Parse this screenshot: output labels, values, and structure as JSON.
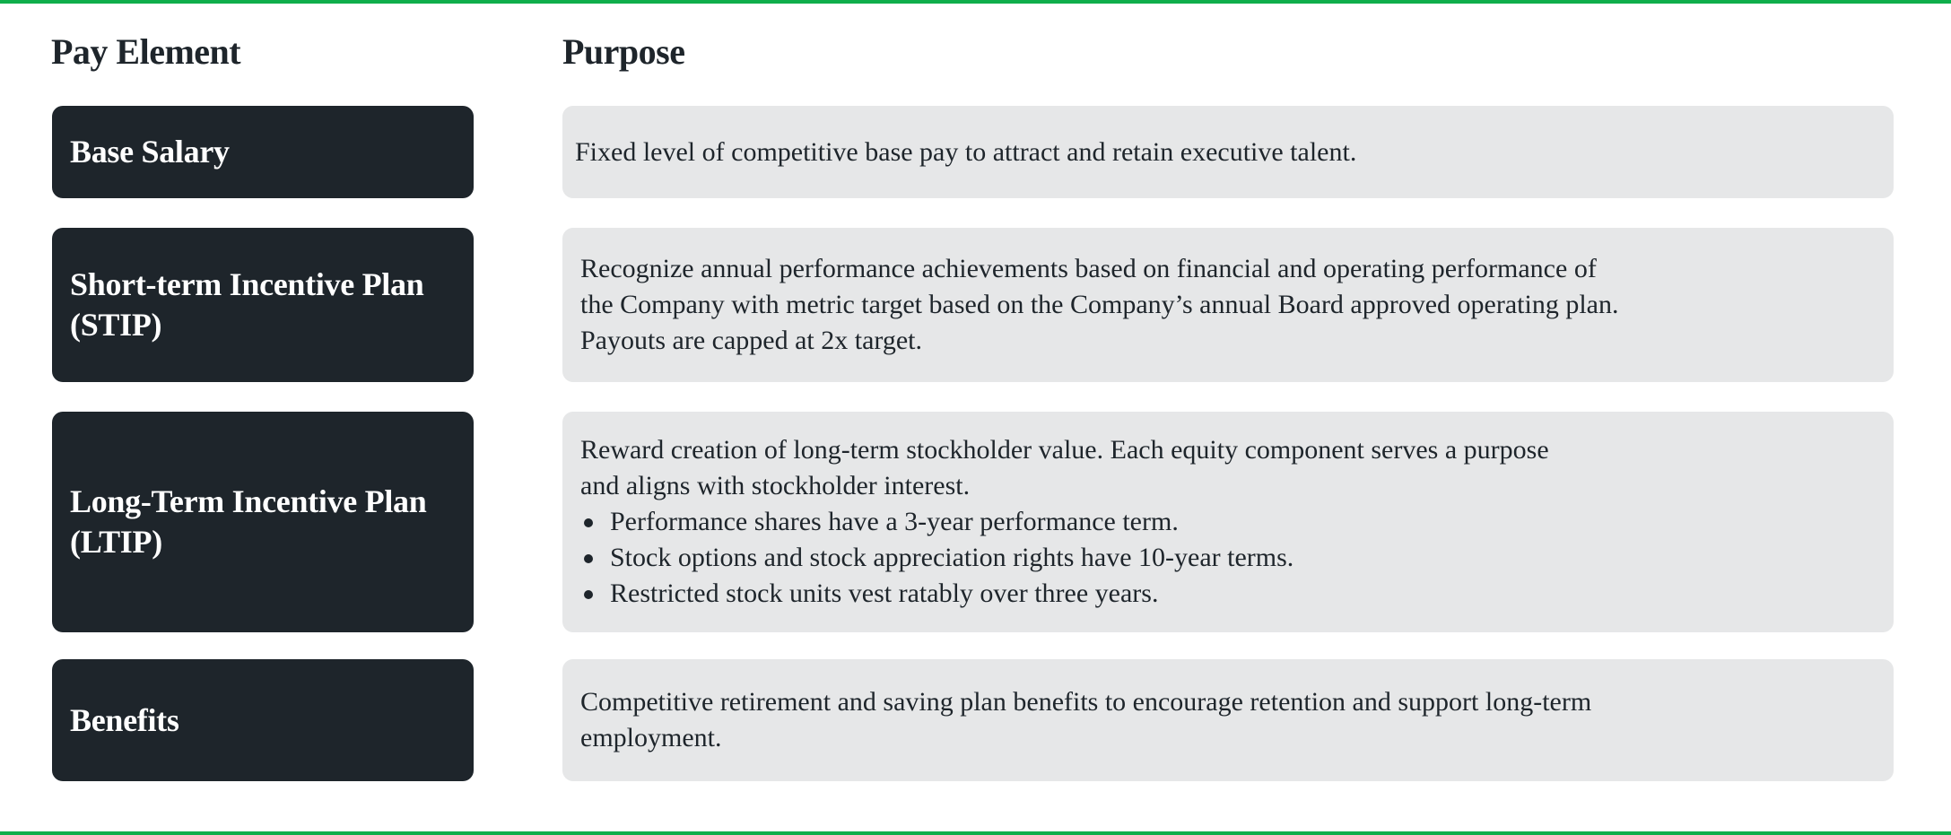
{
  "colors": {
    "accent": "#0fae4b",
    "label_bg": "#1e252b",
    "purpose_bg": "#e6e7e8"
  },
  "headers": {
    "pay_element": "Pay Element",
    "purpose": "Purpose"
  },
  "rows": [
    {
      "label_lines": [
        "Base Salary"
      ],
      "purpose_lines": [
        "Fixed level of competitive base pay to attract and retain executive talent."
      ],
      "bullets": []
    },
    {
      "label_lines": [
        "Short-term Incentive Plan",
        "(STIP)"
      ],
      "purpose_lines": [
        "Recognize annual performance achievements based on financial and operating performance of",
        "the Company with metric target based on the Company’s annual Board approved operating plan.",
        "Payouts are capped at 2x target."
      ],
      "bullets": []
    },
    {
      "label_lines": [
        "Long-Term Incentive Plan",
        "(LTIP)"
      ],
      "purpose_lines": [
        "Reward creation of long-term stockholder value. Each equity component serves a purpose",
        "and aligns with stockholder interest."
      ],
      "bullets": [
        "Performance shares have a 3-year performance term.",
        "Stock options and stock appreciation rights have 10-year terms.",
        "Restricted stock units vest ratably over three years."
      ]
    },
    {
      "label_lines": [
        "Benefits"
      ],
      "purpose_lines": [
        "Competitive retirement and saving plan benefits to encourage retention and support long-term",
        "employment."
      ],
      "bullets": []
    }
  ]
}
